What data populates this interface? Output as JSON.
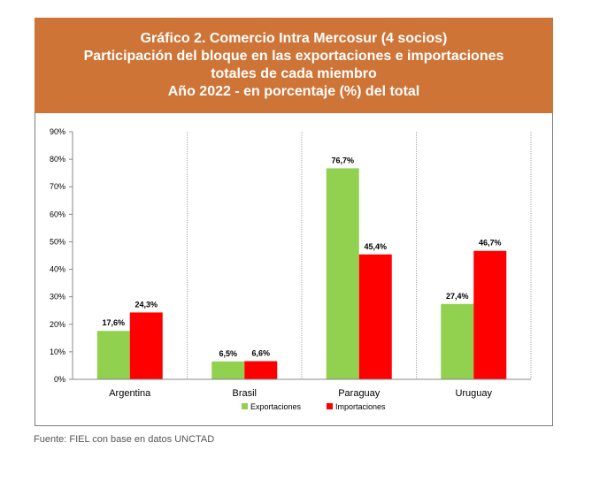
{
  "header": {
    "lines": [
      "Gráfico 2. Comercio Intra Mercosur (4 socios)",
      "Participación del bloque en las exportaciones e importaciones",
      "totales de cada miembro",
      "Año 2022 - en porcentaje (%) del total"
    ]
  },
  "chart_data": {
    "type": "bar",
    "title": "Gráfico 2. Comercio Intra Mercosur (4 socios)",
    "categories": [
      "Argentina",
      "Brasil",
      "Paraguay",
      "Uruguay"
    ],
    "series": [
      {
        "name": "Exportaciones",
        "color": "#92d050",
        "values": [
          17.6,
          6.5,
          76.7,
          27.4
        ],
        "labels": [
          "17,6%",
          "6,5%",
          "76,7%",
          "27,4%"
        ]
      },
      {
        "name": "Importaciones",
        "color": "#ff0000",
        "values": [
          24.3,
          6.6,
          45.4,
          46.7
        ],
        "labels": [
          "24,3%",
          "6,6%",
          "45,4%",
          "46,7%"
        ]
      }
    ],
    "ylim": [
      0,
      90
    ],
    "yticks": [
      0,
      10,
      20,
      30,
      40,
      50,
      60,
      70,
      80,
      90
    ],
    "ytick_labels": [
      "0%",
      "10%",
      "20%",
      "30%",
      "40%",
      "50%",
      "60%",
      "70%",
      "80%",
      "90%"
    ],
    "xlabel": "",
    "ylabel": "",
    "grid": "vertical separators between categories",
    "legend": "bottom-center"
  },
  "source": "Fuente: FIEL con base en datos UNCTAD"
}
